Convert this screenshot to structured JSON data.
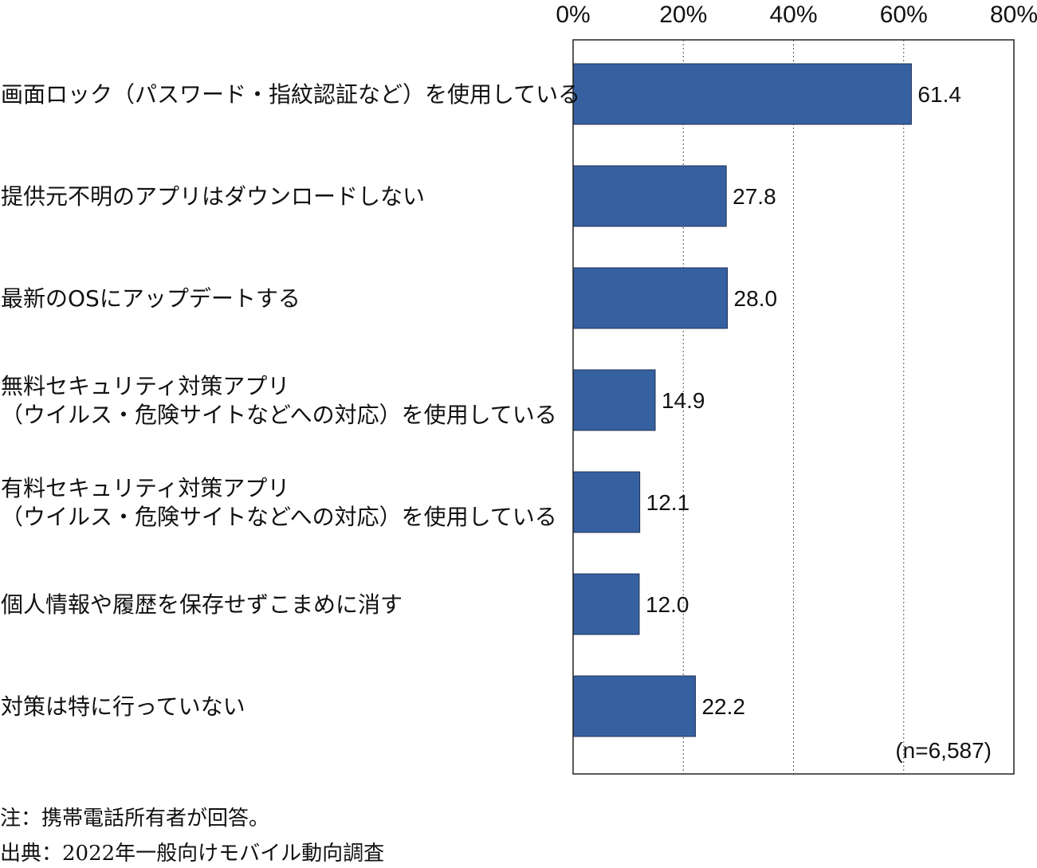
{
  "chart_data": {
    "type": "bar",
    "orientation": "horizontal",
    "categories": [
      [
        "画面ロック（パスワード・指紋認証など）を使用している"
      ],
      [
        "提供元不明のアプリはダウンロードしない"
      ],
      [
        "最新のOSにアップデートする"
      ],
      [
        "無料セキュリティ対策アプリ",
        "（ウイルス・危険サイトなどへの対応）を使用している"
      ],
      [
        "有料セキュリティ対策アプリ",
        "（ウイルス・危険サイトなどへの対応）を使用している"
      ],
      [
        "個人情報や履歴を保存せずこまめに消す"
      ],
      [
        "対策は特に行っていない"
      ]
    ],
    "values": [
      61.4,
      27.8,
      28.0,
      14.9,
      12.1,
      12.0,
      22.2
    ],
    "value_labels": [
      "61.4",
      "27.8",
      "28.0",
      "14.9",
      "12.1",
      "12.0",
      "22.2"
    ],
    "x_ticks": [
      "0%",
      "20%",
      "40%",
      "60%",
      "80%"
    ],
    "xlim": [
      0,
      80
    ],
    "tick_values": [
      0,
      20,
      40,
      60,
      80
    ],
    "grid": "vertical dotted",
    "bar_color": "#3561a1",
    "sample_size": "(n=6,587)"
  },
  "notes": {
    "note": "注：携帯電話所有者が回答。",
    "source": "出典：2022年一般向けモバイル動向調査"
  }
}
